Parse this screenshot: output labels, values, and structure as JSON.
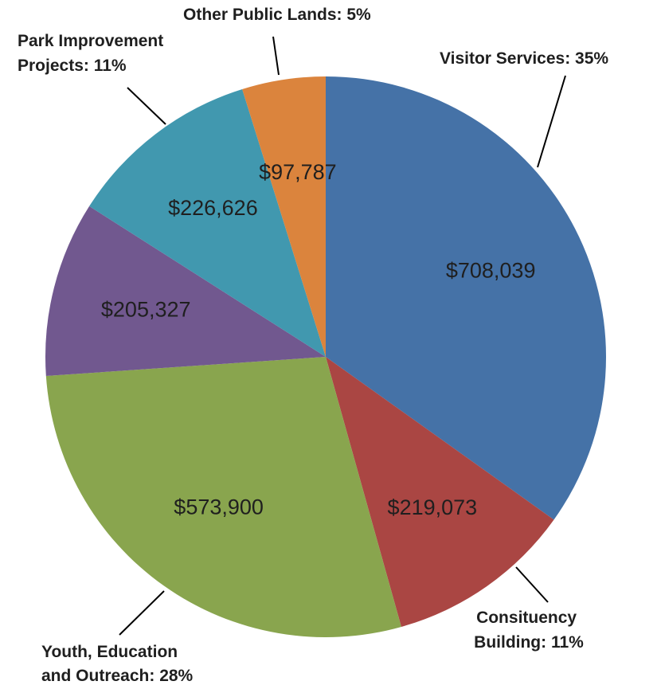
{
  "chart_data": {
    "type": "pie",
    "title": "",
    "slices": [
      {
        "category": "Visitor Services: 35%",
        "value": 708039,
        "value_label": "$708,039",
        "color": "#4572a7"
      },
      {
        "category": "Consituency Building: 11%",
        "value": 219073,
        "value_label": "$219,073",
        "color": "#aa4643"
      },
      {
        "category": "Youth, Education and Outreach: 28%",
        "value": 573900,
        "value_label": "$573,900",
        "color": "#89a54e"
      },
      {
        "category": "",
        "value": 205327,
        "value_label": "$205,327",
        "color": "#71588f"
      },
      {
        "category": "Park Improvement Projects: 11%",
        "value": 226626,
        "value_label": "$226,626",
        "color": "#4198af"
      },
      {
        "category": "Other Public Lands: 5%",
        "value": 97787,
        "value_label": "$97,787",
        "color": "#db843d"
      }
    ],
    "legend": "none",
    "label_text": {
      "visitor": [
        "Visitor Services: 35%"
      ],
      "consituency": [
        "Consituency",
        "Building: 11%"
      ],
      "youth": [
        "Youth, Education",
        "and Outreach: 28%"
      ],
      "park": [
        "Park Improvement",
        "Projects: 11%"
      ],
      "other": [
        "Other Public Lands: 5%"
      ]
    }
  }
}
